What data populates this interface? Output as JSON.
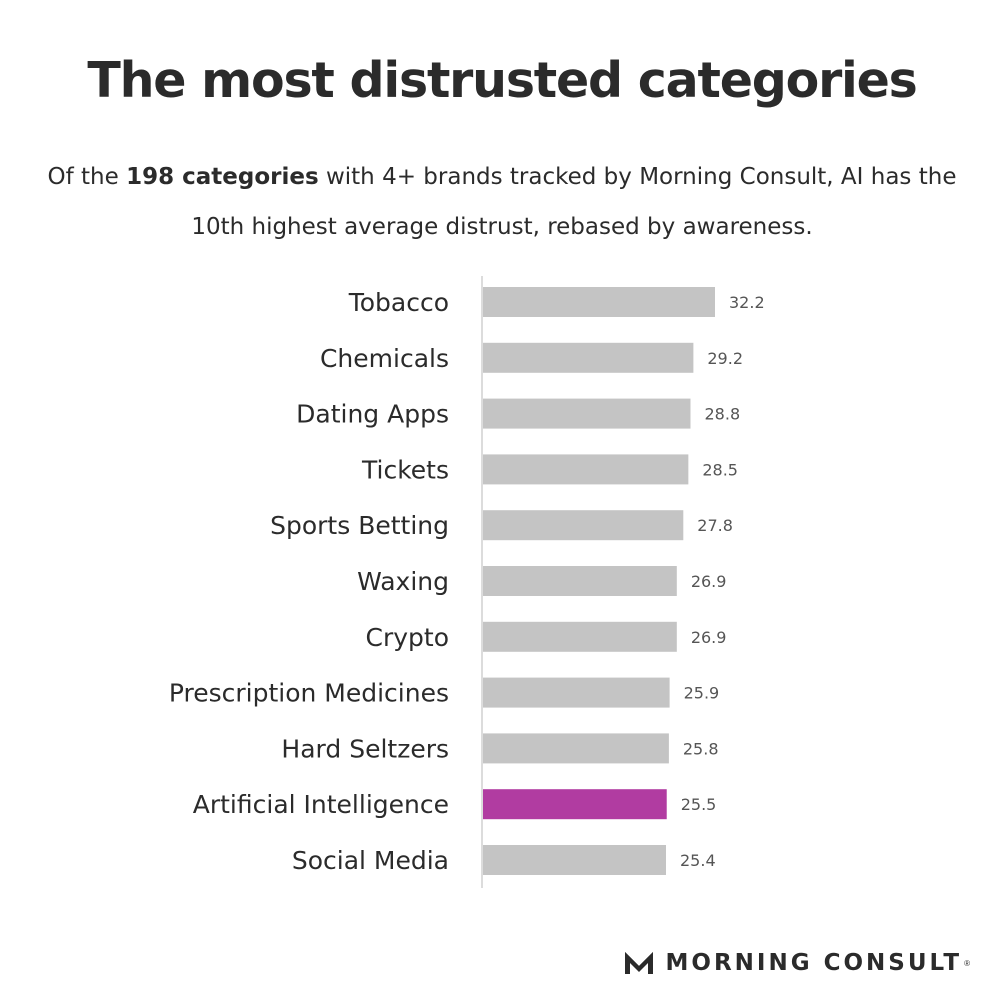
{
  "header": {
    "title": "The most distrusted categories",
    "subtitle_pre": "Of the ",
    "subtitle_bold": "198 categories",
    "subtitle_post": " with 4+ brands tracked by Morning Consult, AI has the 10th highest average distrust, rebased by awareness."
  },
  "chart_data": {
    "type": "bar",
    "orientation": "horizontal",
    "categories": [
      "Tobacco",
      "Chemicals",
      "Dating Apps",
      "Tickets",
      "Sports Betting",
      "Waxing",
      "Crypto",
      "Prescription Medicines",
      "Hard Seltzers",
      "Artificial Intelligence",
      "Social Media"
    ],
    "values": [
      32.2,
      29.2,
      28.8,
      28.5,
      27.8,
      26.9,
      26.9,
      25.9,
      25.8,
      25.5,
      25.4
    ],
    "value_labels": [
      "32.2",
      "29.2",
      "28.8",
      "28.5",
      "27.8",
      "26.9",
      "26.9",
      "25.9",
      "25.8",
      "25.5",
      "25.4"
    ],
    "highlight_index": 9,
    "colors": {
      "bar": "#c4c4c4",
      "highlight": "#b13ca1",
      "axis": "#d0d0d0"
    },
    "xlim": [
      0,
      32.2
    ],
    "grid": false,
    "legend": "none"
  },
  "brand": {
    "name": "MORNING CONSULT",
    "registered": "®",
    "icon": "morning-consult-logo-icon"
  }
}
